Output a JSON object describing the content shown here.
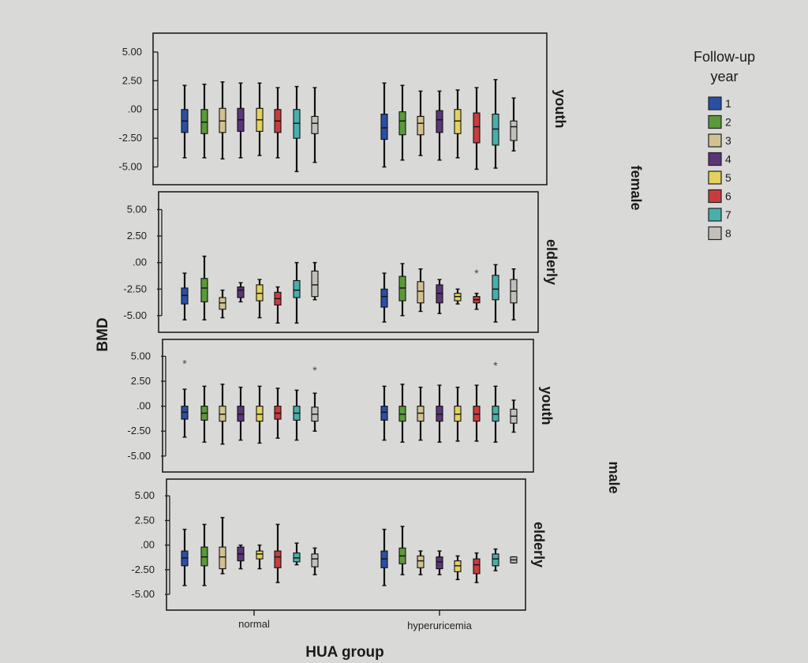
{
  "chart_data": {
    "type": "boxplot",
    "y_axis_label": "BMD",
    "x_axis_label": "HUA group",
    "categories": [
      "normal",
      "hyperuricemia"
    ],
    "y_ticks": [
      "5.00",
      "2.50",
      ".00",
      "-2.50",
      "-5.00"
    ],
    "y_tick_values": [
      5,
      2.5,
      0,
      -2.5,
      -5
    ],
    "ylim": [
      -6.2,
      6.3
    ],
    "legend": {
      "title_line1": "Follow-up",
      "title_line2": "year",
      "items": [
        {
          "label": "1",
          "color": "#2a4fa3"
        },
        {
          "label": "2",
          "color": "#5b9a3a"
        },
        {
          "label": "3",
          "color": "#d2c28f"
        },
        {
          "label": "4",
          "color": "#5a3578"
        },
        {
          "label": "5",
          "color": "#e3d25b"
        },
        {
          "label": "6",
          "color": "#c83c3c"
        },
        {
          "label": "7",
          "color": "#47b0aa"
        },
        {
          "label": "8",
          "color": "#c2c0b8"
        }
      ]
    },
    "outer_groups": [
      "female",
      "male"
    ],
    "panels": [
      {
        "sex": "female",
        "age": "youth",
        "normal": [
          {
            "year": 1,
            "min": -4.2,
            "q1": -2.0,
            "median": -1.0,
            "q3": 0.0,
            "max": 2.1
          },
          {
            "year": 2,
            "min": -4.2,
            "q1": -2.1,
            "median": -1.1,
            "q3": 0.0,
            "max": 2.2
          },
          {
            "year": 3,
            "min": -4.3,
            "q1": -2.0,
            "median": -1.0,
            "q3": 0.1,
            "max": 2.4
          },
          {
            "year": 4,
            "min": -4.2,
            "q1": -1.9,
            "median": -0.9,
            "q3": 0.1,
            "max": 2.3
          },
          {
            "year": 5,
            "min": -4.0,
            "q1": -1.9,
            "median": -0.9,
            "q3": 0.1,
            "max": 2.3
          },
          {
            "year": 6,
            "min": -4.2,
            "q1": -2.0,
            "median": -1.0,
            "q3": 0.0,
            "max": 1.9
          },
          {
            "year": 7,
            "min": -5.4,
            "q1": -2.5,
            "median": -1.2,
            "q3": 0.0,
            "max": 2.0
          },
          {
            "year": 8,
            "min": -4.6,
            "q1": -2.1,
            "median": -1.2,
            "q3": -0.6,
            "max": 1.9
          }
        ],
        "hyperuricemia": [
          {
            "year": 1,
            "min": -5.0,
            "q1": -2.6,
            "median": -1.6,
            "q3": -0.4,
            "max": 2.3
          },
          {
            "year": 2,
            "min": -4.4,
            "q1": -2.2,
            "median": -1.0,
            "q3": -0.2,
            "max": 2.1
          },
          {
            "year": 3,
            "min": -4.0,
            "q1": -2.2,
            "median": -1.2,
            "q3": -0.6,
            "max": 1.6
          },
          {
            "year": 4,
            "min": -4.4,
            "q1": -2.0,
            "median": -0.9,
            "q3": -0.1,
            "max": 1.6
          },
          {
            "year": 5,
            "min": -4.2,
            "q1": -2.1,
            "median": -1.0,
            "q3": 0.0,
            "max": 1.7
          },
          {
            "year": 6,
            "min": -5.2,
            "q1": -2.9,
            "median": -1.5,
            "q3": -0.3,
            "max": 1.9
          },
          {
            "year": 7,
            "min": -5.1,
            "q1": -3.1,
            "median": -1.7,
            "q3": -0.4,
            "max": 2.6
          },
          {
            "year": 8,
            "min": -3.6,
            "q1": -2.7,
            "median": -1.5,
            "q3": -1.0,
            "max": 1.0
          }
        ]
      },
      {
        "sex": "female",
        "age": "elderly",
        "normal": [
          {
            "year": 1,
            "min": -5.4,
            "q1": -3.9,
            "median": -3.1,
            "q3": -2.4,
            "max": -1.0
          },
          {
            "year": 2,
            "min": -5.4,
            "q1": -3.7,
            "median": -2.4,
            "q3": -1.5,
            "max": 0.6
          },
          {
            "year": 3,
            "min": -5.2,
            "q1": -4.4,
            "median": -3.8,
            "q3": -3.3,
            "max": -2.6
          },
          {
            "year": 4,
            "min": -3.7,
            "q1": -3.3,
            "median": -2.6,
            "q3": -2.3,
            "max": -1.9
          },
          {
            "year": 5,
            "min": -5.2,
            "q1": -3.6,
            "median": -2.9,
            "q3": -2.1,
            "max": -1.6
          },
          {
            "year": 6,
            "min": -5.7,
            "q1": -4.0,
            "median": -3.4,
            "q3": -2.8,
            "max": -2.3
          },
          {
            "year": 7,
            "min": -5.7,
            "q1": -3.3,
            "median": -2.6,
            "q3": -1.7,
            "max": 0.0
          },
          {
            "year": 8,
            "min": -3.5,
            "q1": -3.2,
            "median": -2.1,
            "q3": -0.8,
            "max": 0.0
          }
        ],
        "hyperuricemia": [
          {
            "year": 1,
            "min": -5.6,
            "q1": -4.2,
            "median": -3.2,
            "q3": -2.5,
            "max": -1.0
          },
          {
            "year": 2,
            "min": -5.0,
            "q1": -3.6,
            "median": -2.4,
            "q3": -1.3,
            "max": -0.1
          },
          {
            "year": 3,
            "min": -4.6,
            "q1": -3.8,
            "median": -2.7,
            "q3": -1.8,
            "max": -0.6
          },
          {
            "year": 4,
            "min": -4.8,
            "q1": -3.8,
            "median": -2.9,
            "q3": -2.1,
            "max": -1.6
          },
          {
            "year": 5,
            "min": -3.9,
            "q1": -3.6,
            "median": -3.2,
            "q3": -2.9,
            "max": -2.5
          },
          {
            "year": 6,
            "min": -4.4,
            "q1": -3.8,
            "median": -3.5,
            "q3": -3.2,
            "max": -2.9
          },
          {
            "year": 7,
            "min": -5.6,
            "q1": -3.5,
            "median": -2.5,
            "q3": -1.2,
            "max": -0.2
          },
          {
            "year": 8,
            "min": -5.4,
            "q1": -3.8,
            "median": -2.7,
            "q3": -1.6,
            "max": -0.6
          }
        ],
        "outliers": [
          {
            "group": "hyperuricemia",
            "year": 6,
            "value": -1.0,
            "symbol": "*"
          }
        ]
      },
      {
        "sex": "male",
        "age": "youth",
        "normal": [
          {
            "year": 1,
            "min": -3.1,
            "q1": -1.3,
            "median": -0.6,
            "q3": 0.0,
            "max": 1.7
          },
          {
            "year": 2,
            "min": -3.6,
            "q1": -1.4,
            "median": -0.7,
            "q3": 0.0,
            "max": 2.0
          },
          {
            "year": 3,
            "min": -3.8,
            "q1": -1.5,
            "median": -0.8,
            "q3": 0.0,
            "max": 2.2
          },
          {
            "year": 4,
            "min": -3.4,
            "q1": -1.5,
            "median": -0.8,
            "q3": 0.0,
            "max": 1.9
          },
          {
            "year": 5,
            "min": -3.7,
            "q1": -1.5,
            "median": -0.8,
            "q3": 0.0,
            "max": 2.0
          },
          {
            "year": 6,
            "min": -3.2,
            "q1": -1.3,
            "median": -0.7,
            "q3": 0.0,
            "max": 1.8
          },
          {
            "year": 7,
            "min": -3.4,
            "q1": -1.4,
            "median": -0.7,
            "q3": 0.0,
            "max": 1.6
          },
          {
            "year": 8,
            "min": -2.5,
            "q1": -1.5,
            "median": -0.8,
            "q3": -0.1,
            "max": 1.3
          }
        ],
        "hyperuricemia": [
          {
            "year": 1,
            "min": -3.4,
            "q1": -1.4,
            "median": -0.6,
            "q3": 0.0,
            "max": 2.0
          },
          {
            "year": 2,
            "min": -3.6,
            "q1": -1.5,
            "median": -0.8,
            "q3": 0.0,
            "max": 2.2
          },
          {
            "year": 3,
            "min": -3.4,
            "q1": -1.5,
            "median": -0.7,
            "q3": 0.0,
            "max": 1.9
          },
          {
            "year": 4,
            "min": -3.6,
            "q1": -1.5,
            "median": -0.8,
            "q3": 0.0,
            "max": 2.1
          },
          {
            "year": 5,
            "min": -3.5,
            "q1": -1.5,
            "median": -0.8,
            "q3": 0.0,
            "max": 1.9
          },
          {
            "year": 6,
            "min": -3.5,
            "q1": -1.5,
            "median": -0.8,
            "q3": 0.0,
            "max": 2.1
          },
          {
            "year": 7,
            "min": -3.6,
            "q1": -1.5,
            "median": -0.8,
            "q3": 0.0,
            "max": 2.0
          },
          {
            "year": 8,
            "min": -2.6,
            "q1": -1.7,
            "median": -1.0,
            "q3": -0.3,
            "max": 0.6
          }
        ],
        "outliers": [
          {
            "group": "normal",
            "year": 1,
            "value": 4.3,
            "symbol": "*"
          },
          {
            "group": "normal",
            "year": 8,
            "value": 3.6,
            "symbol": "*"
          },
          {
            "group": "hyperuricemia",
            "year": 7,
            "value": 4.1,
            "symbol": "*"
          }
        ]
      },
      {
        "sex": "male",
        "age": "elderly",
        "normal": [
          {
            "year": 1,
            "min": -4.1,
            "q1": -2.1,
            "median": -1.3,
            "q3": -0.6,
            "max": 1.6
          },
          {
            "year": 2,
            "min": -4.1,
            "q1": -2.1,
            "median": -1.2,
            "q3": -0.2,
            "max": 2.1
          },
          {
            "year": 3,
            "min": -2.9,
            "q1": -2.4,
            "median": -1.2,
            "q3": -0.2,
            "max": 2.8
          },
          {
            "year": 4,
            "min": -2.4,
            "q1": -1.6,
            "median": -0.9,
            "q3": -0.2,
            "max": 0.0
          },
          {
            "year": 5,
            "min": -2.4,
            "q1": -1.4,
            "median": -0.9,
            "q3": -0.6,
            "max": 0.0
          },
          {
            "year": 6,
            "min": -3.8,
            "q1": -2.3,
            "median": -1.2,
            "q3": -0.6,
            "max": 2.1
          },
          {
            "year": 7,
            "min": -2.0,
            "q1": -1.7,
            "median": -1.3,
            "q3": -0.8,
            "max": 0.2
          },
          {
            "year": 8,
            "min": -3.0,
            "q1": -2.2,
            "median": -1.4,
            "q3": -0.9,
            "max": -0.3
          }
        ],
        "hyperuricemia": [
          {
            "year": 1,
            "min": -4.1,
            "q1": -2.3,
            "median": -1.4,
            "q3": -0.6,
            "max": 1.6
          },
          {
            "year": 2,
            "min": -3.0,
            "q1": -1.9,
            "median": -1.1,
            "q3": -0.3,
            "max": 1.9
          },
          {
            "year": 3,
            "min": -3.0,
            "q1": -2.3,
            "median": -1.6,
            "q3": -1.1,
            "max": -0.6
          },
          {
            "year": 4,
            "min": -3.0,
            "q1": -2.4,
            "median": -1.7,
            "q3": -1.2,
            "max": -0.6
          },
          {
            "year": 5,
            "min": -3.5,
            "q1": -2.7,
            "median": -2.1,
            "q3": -1.6,
            "max": -1.1
          },
          {
            "year": 6,
            "min": -3.8,
            "q1": -2.9,
            "median": -2.0,
            "q3": -1.4,
            "max": -0.8
          },
          {
            "year": 7,
            "min": -2.6,
            "q1": -2.1,
            "median": -1.4,
            "q3": -0.9,
            "max": -0.4
          },
          {
            "year": 8,
            "min": -1.8,
            "q1": -1.8,
            "median": -1.5,
            "q3": -1.2,
            "max": -1.2
          }
        ]
      }
    ]
  }
}
